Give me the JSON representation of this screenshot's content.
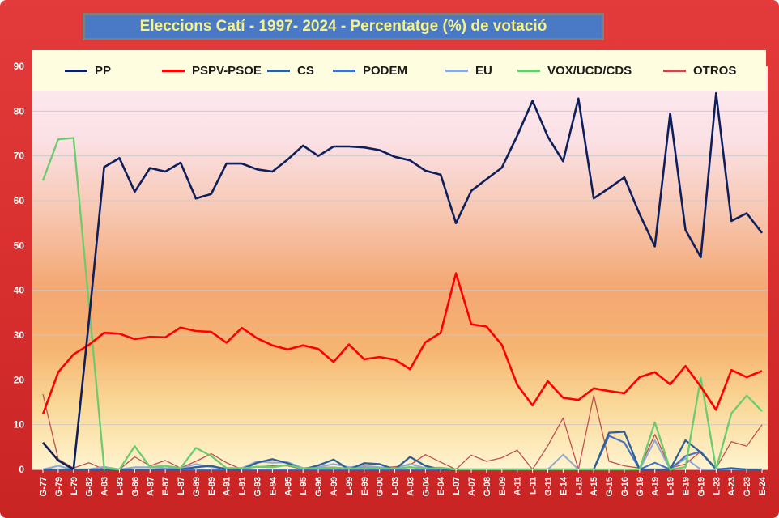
{
  "chart_data": {
    "type": "line",
    "title": "Eleccions Catí - 1997- 2024 -  Percentatge (%) de votació",
    "xlabel": "",
    "ylabel": "",
    "ylim": [
      0,
      90
    ],
    "yticks": [
      0,
      10,
      20,
      30,
      40,
      50,
      60,
      70,
      80,
      90
    ],
    "grid": true,
    "legend_position": "top",
    "categories": [
      "G-77",
      "G-79",
      "L-79",
      "G-82",
      "A-83",
      "L-83",
      "G-86",
      "A-87",
      "E-87",
      "L-87",
      "G-89",
      "E-89",
      "A-91",
      "L-91",
      "G-93",
      "E-94",
      "A-95",
      "L-95",
      "G-96",
      "A-99",
      "L-99",
      "E-99",
      "G-00",
      "L-03",
      "A-03",
      "G-04",
      "E-04",
      "L-07",
      "A-07",
      "G-08",
      "E-09",
      "A-11",
      "L-11",
      "G-11",
      "E-14",
      "L-15",
      "A-15",
      "G-15",
      "G-16",
      "G-19",
      "A-19",
      "L-19",
      "E-19",
      "G-19",
      "L-23",
      "A-23",
      "G-23",
      "E-24"
    ],
    "series": [
      {
        "name": "PP",
        "color": "#0d1f5c",
        "values": [
          6,
          2,
          0,
          33,
          67.5,
          69.5,
          62,
          67.3,
          66.5,
          68.5,
          60.5,
          61.5,
          68.3,
          68.3,
          67,
          66.5,
          69.2,
          72.3,
          70,
          72.1,
          72.1,
          71.9,
          71.3,
          69.8,
          69,
          66.7,
          65.8,
          55,
          62.2,
          64.8,
          67.4,
          74.5,
          82.3,
          74.3,
          68.8,
          82.8,
          60.5,
          62.8,
          65.2,
          57,
          49.8,
          79.5,
          53.5,
          47.4,
          84,
          55.5,
          57.2,
          52.8
        ]
      },
      {
        "name": "PSPV-PSOE",
        "color": "#ff0000",
        "values": [
          12.3,
          21.7,
          25.7,
          27.8,
          30.5,
          30.3,
          29.1,
          29.6,
          29.5,
          31.7,
          30.9,
          30.7,
          28.3,
          31.6,
          29.3,
          27.7,
          26.8,
          27.7,
          26.9,
          24,
          27.9,
          24.6,
          25.1,
          24.5,
          22.4,
          28.4,
          30.5,
          43.8,
          32.4,
          31.9,
          27.8,
          18.9,
          14.3,
          19.7,
          16,
          15.5,
          18.1,
          17.5,
          17,
          20.6,
          21.7,
          19,
          23.1,
          18.5,
          13.3,
          22.2,
          20.6,
          22
        ]
      },
      {
        "name": "CS",
        "color": "#2f5f99",
        "values": [
          0,
          0,
          0,
          0,
          0,
          0,
          0,
          0,
          0,
          0,
          0.5,
          0.8,
          0,
          0,
          1.5,
          2.3,
          1.4,
          0,
          0.9,
          2.2,
          0,
          1.4,
          1.2,
          0,
          2.8,
          0.8,
          0,
          0,
          0,
          0,
          0,
          0,
          0,
          0,
          0,
          0,
          0,
          8.2,
          8.4,
          0,
          0,
          0,
          6.5,
          3.8,
          0,
          0.2,
          0,
          0
        ]
      },
      {
        "name": "PODEM",
        "color": "#4472c4",
        "values": [
          0,
          0,
          0,
          0,
          0,
          0,
          0,
          0,
          0,
          0,
          0,
          0,
          0,
          0,
          0,
          0,
          0,
          0,
          0,
          0,
          0,
          0,
          0,
          0,
          0,
          0,
          0,
          0,
          0,
          0,
          0,
          0,
          0,
          0,
          0,
          0,
          0,
          7.5,
          6,
          0,
          1.5,
          0,
          3,
          4,
          0,
          0.3,
          0,
          0
        ]
      },
      {
        "name": "EU",
        "color": "#8eaadb",
        "values": [
          0,
          0.8,
          0,
          0,
          0.6,
          0,
          0.5,
          0.5,
          0.3,
          0.2,
          1.2,
          0.5,
          0.3,
          0.3,
          1.8,
          1.5,
          1.6,
          0.3,
          0.5,
          1.2,
          0.5,
          0.8,
          0.5,
          0.3,
          1.2,
          0.3,
          0.4,
          0,
          0,
          0,
          0,
          0,
          0,
          0,
          3.3,
          0,
          0,
          0,
          0,
          0,
          6.5,
          0,
          2.5,
          0,
          0,
          0,
          0,
          0
        ]
      },
      {
        "name": "VOX/UCD/CDS",
        "color": "#6ccb6c",
        "values": [
          64.5,
          73.7,
          74,
          37,
          0.3,
          0,
          5.2,
          0.5,
          0.8,
          0.3,
          4.8,
          3,
          0.3,
          0.2,
          0.6,
          0.5,
          1,
          0.2,
          0.3,
          0.4,
          0.2,
          0.3,
          0.3,
          0.2,
          0.5,
          0.2,
          0.3,
          0,
          0,
          0,
          0,
          0,
          0,
          0,
          0,
          0,
          0,
          0,
          0,
          0,
          10.5,
          0,
          0.5,
          20.5,
          0,
          12.5,
          16.5,
          13
        ]
      },
      {
        "name": "OTROS",
        "color": "#c0504d",
        "values": [
          16.8,
          2.3,
          0.3,
          1.5,
          0,
          0,
          2.8,
          0.8,
          2,
          0.3,
          1.8,
          3.5,
          1.5,
          0,
          0.6,
          0.8,
          0.8,
          0,
          0.4,
          0.5,
          0.2,
          0.5,
          0.3,
          0.6,
          1,
          3.3,
          1.6,
          0,
          3.2,
          1.8,
          2.6,
          4.3,
          0,
          5.3,
          11.5,
          0,
          16.5,
          1.8,
          0.8,
          0.3,
          7.8,
          0.3,
          1.2,
          4,
          0.3,
          6.2,
          5.2,
          10
        ]
      }
    ]
  }
}
